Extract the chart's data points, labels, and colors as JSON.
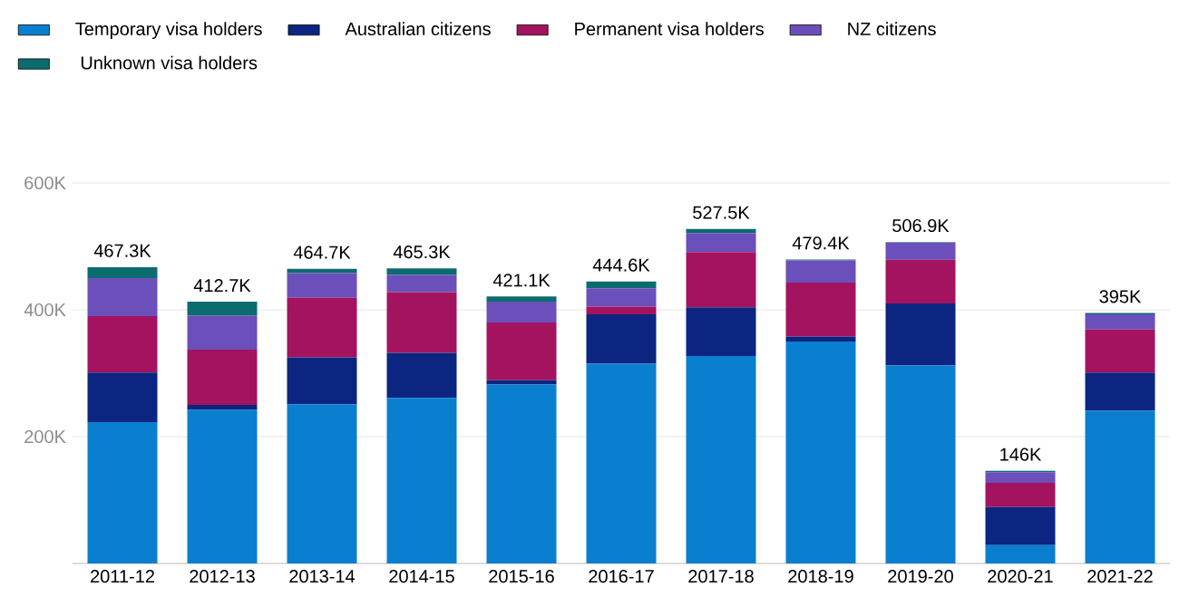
{
  "chart_data": {
    "type": "bar",
    "stacked": true,
    "categories": [
      "2011-12",
      "2012-13",
      "2013-14",
      "2014-15",
      "2015-16",
      "2016-17",
      "2017-18",
      "2018-19",
      "2019-20",
      "2020-21",
      "2021-22"
    ],
    "series": [
      {
        "name": "Temporary visa holders",
        "color": "#0a7fcf",
        "values": [
          223,
          242,
          251,
          261,
          282,
          315,
          327,
          350,
          312,
          29,
          241
        ]
      },
      {
        "name": "Australian citizens",
        "color": "#0b2580",
        "values": [
          78,
          8,
          74,
          71,
          7,
          78,
          77,
          8,
          98,
          60,
          60
        ]
      },
      {
        "name": "Permanent visa holders",
        "color": "#a4135f",
        "values": [
          89,
          87,
          94,
          96,
          91,
          12,
          87,
          85,
          69,
          38,
          68
        ]
      },
      {
        "name": "NZ citizens",
        "color": "#6b4fbb",
        "values": [
          60,
          54,
          39,
          27,
          33,
          29,
          30,
          35,
          27,
          17,
          24
        ]
      },
      {
        "name": "Unknown visa holders",
        "color": "#0c6b6f",
        "values": [
          17.3,
          21.7,
          6.7,
          10.3,
          8.1,
          10.6,
          6.5,
          1.4,
          0.9,
          2,
          2
        ]
      }
    ],
    "totals": [
      "467.3K",
      "412.7K",
      "464.7K",
      "465.3K",
      "421.1K",
      "444.6K",
      "527.5K",
      "479.4K",
      "506.9K",
      "146K",
      "395K"
    ],
    "ylim": [
      0,
      600
    ],
    "yticks": [
      {
        "value": 200,
        "label": "200K"
      },
      {
        "value": 400,
        "label": "400K"
      },
      {
        "value": 600,
        "label": "600K"
      }
    ],
    "grid": "y",
    "legend": "top left"
  }
}
